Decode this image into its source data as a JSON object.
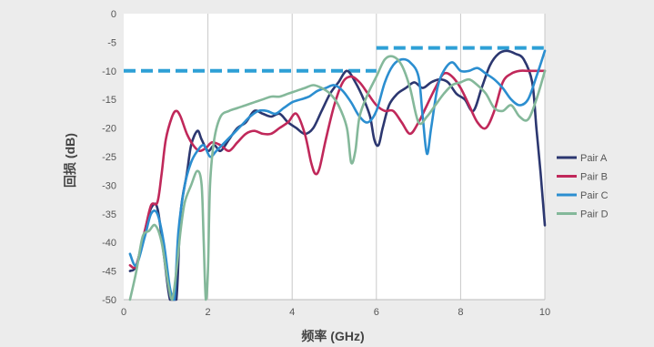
{
  "chart_data": {
    "type": "line",
    "title": "",
    "xlabel": "频率 (GHz)",
    "ylabel": "回损 (dB)",
    "xlim": [
      0,
      10
    ],
    "ylim": [
      -50,
      0
    ],
    "x_ticks": [
      0,
      2,
      4,
      6,
      8,
      10
    ],
    "y_ticks": [
      0,
      -5,
      -10,
      -15,
      -20,
      -25,
      -30,
      -35,
      -40,
      -45,
      -50
    ],
    "grid": "vertical",
    "legend_position": "right",
    "series": [
      {
        "name": "Pair A",
        "color": "#2c3770",
        "x": [
          0.15,
          0.3,
          0.5,
          0.65,
          0.8,
          0.95,
          1.1,
          1.25,
          1.35,
          1.5,
          1.6,
          1.75,
          1.85,
          2.0,
          2.15,
          2.3,
          2.5,
          2.7,
          2.9,
          3.1,
          3.3,
          3.5,
          3.7,
          3.9,
          4.1,
          4.3,
          4.5,
          4.7,
          4.9,
          5.1,
          5.3,
          5.5,
          5.7,
          5.85,
          5.95,
          6.05,
          6.15,
          6.3,
          6.5,
          6.7,
          6.9,
          7.1,
          7.3,
          7.5,
          7.7,
          7.9,
          8.1,
          8.3,
          8.5,
          8.7,
          8.9,
          9.1,
          9.3,
          9.5,
          9.7,
          9.8,
          9.9,
          10.0
        ],
        "values": [
          -45,
          -44,
          -38,
          -34,
          -34,
          -42,
          -50,
          -50,
          -35,
          -28,
          -23,
          -20.5,
          -22,
          -24,
          -23,
          -24,
          -22,
          -20,
          -19,
          -17,
          -17.5,
          -18,
          -17.5,
          -19,
          -20,
          -21,
          -20,
          -17,
          -14,
          -12,
          -10,
          -12,
          -15,
          -18,
          -22,
          -23,
          -20,
          -16,
          -14,
          -13,
          -12,
          -13,
          -12,
          -11.5,
          -12,
          -14,
          -15,
          -17,
          -13,
          -9,
          -7,
          -6.5,
          -7,
          -8,
          -12,
          -20,
          -28,
          -37
        ]
      },
      {
        "name": "Pair B",
        "color": "#c0285a",
        "x": [
          0.15,
          0.3,
          0.5,
          0.65,
          0.8,
          0.9,
          1.0,
          1.15,
          1.25,
          1.35,
          1.5,
          1.65,
          1.8,
          1.95,
          2.1,
          2.3,
          2.5,
          2.7,
          2.9,
          3.1,
          3.3,
          3.5,
          3.7,
          3.9,
          4.1,
          4.3,
          4.45,
          4.55,
          4.65,
          4.8,
          5.0,
          5.2,
          5.4,
          5.6,
          5.8,
          6.0,
          6.2,
          6.4,
          6.6,
          6.8,
          7.0,
          7.2,
          7.4,
          7.6,
          7.8,
          8.0,
          8.2,
          8.4,
          8.6,
          8.8,
          9.0,
          9.2,
          9.4,
          9.6,
          9.8,
          10.0
        ],
        "values": [
          -44,
          -44,
          -38,
          -33.5,
          -33,
          -28,
          -22,
          -18,
          -17,
          -18,
          -21,
          -23,
          -24,
          -23.5,
          -22.5,
          -23,
          -24,
          -22.5,
          -21,
          -20.5,
          -21,
          -21,
          -20,
          -19,
          -17.5,
          -21,
          -26,
          -28,
          -27,
          -22,
          -16,
          -12,
          -11,
          -12,
          -14,
          -16,
          -17,
          -17,
          -19,
          -21,
          -19,
          -16,
          -13,
          -10.5,
          -11,
          -13,
          -16,
          -19,
          -20,
          -17,
          -12,
          -10.5,
          -10,
          -10,
          -10,
          -10
        ]
      },
      {
        "name": "Pair C",
        "color": "#2b8ed0",
        "x": [
          0.15,
          0.3,
          0.5,
          0.65,
          0.8,
          0.95,
          1.1,
          1.2,
          1.3,
          1.45,
          1.6,
          1.75,
          1.9,
          2.05,
          2.2,
          2.4,
          2.6,
          2.8,
          3.0,
          3.2,
          3.4,
          3.6,
          3.8,
          4.0,
          4.2,
          4.4,
          4.6,
          4.8,
          5.0,
          5.2,
          5.4,
          5.6,
          5.8,
          6.0,
          6.2,
          6.4,
          6.6,
          6.8,
          7.0,
          7.1,
          7.2,
          7.3,
          7.45,
          7.6,
          7.8,
          8.0,
          8.2,
          8.4,
          8.6,
          8.8,
          9.0,
          9.2,
          9.4,
          9.6,
          9.8,
          10.0
        ],
        "values": [
          -42,
          -44,
          -39,
          -35,
          -35,
          -40,
          -48,
          -50,
          -38,
          -30,
          -26,
          -24,
          -23,
          -25,
          -24,
          -22.5,
          -21,
          -19.5,
          -18,
          -17,
          -17,
          -17.5,
          -16.5,
          -15.5,
          -15,
          -14.5,
          -13.5,
          -13,
          -12.5,
          -13.5,
          -15.5,
          -18,
          -19,
          -17,
          -12,
          -9,
          -8,
          -8.5,
          -11,
          -18,
          -24.5,
          -20,
          -13,
          -10,
          -8.5,
          -10,
          -10,
          -9.5,
          -10.5,
          -11.5,
          -13,
          -15,
          -16,
          -15,
          -11,
          -6.5
        ]
      },
      {
        "name": "Pair D",
        "color": "#84b89a",
        "x": [
          0.15,
          0.3,
          0.45,
          0.6,
          0.75,
          0.9,
          1.05,
          1.15,
          1.25,
          1.35,
          1.45,
          1.6,
          1.75,
          1.85,
          1.9,
          1.95,
          2.0,
          2.05,
          2.15,
          2.3,
          2.5,
          2.7,
          2.9,
          3.1,
          3.3,
          3.5,
          3.7,
          3.9,
          4.1,
          4.3,
          4.5,
          4.7,
          4.9,
          5.1,
          5.3,
          5.4,
          5.5,
          5.6,
          5.8,
          6.0,
          6.2,
          6.4,
          6.6,
          6.8,
          7.0,
          7.2,
          7.4,
          7.6,
          7.8,
          8.0,
          8.2,
          8.4,
          8.6,
          8.8,
          9.0,
          9.2,
          9.4,
          9.6,
          9.8,
          10.0
        ],
        "values": [
          -50,
          -45,
          -39,
          -38,
          -37,
          -40,
          -47,
          -50,
          -45,
          -38,
          -33,
          -30,
          -27.5,
          -30,
          -40,
          -50,
          -45,
          -30,
          -22,
          -18,
          -17,
          -16.5,
          -16,
          -15.5,
          -15,
          -14.5,
          -14.5,
          -14,
          -13.5,
          -13,
          -12.5,
          -13,
          -14,
          -16,
          -20,
          -26,
          -24,
          -18,
          -14,
          -11,
          -8,
          -7.5,
          -9,
          -13,
          -19,
          -18,
          -16,
          -14,
          -12.5,
          -12,
          -11.5,
          -12.5,
          -14,
          -16.5,
          -17,
          -16,
          -18,
          -18.5,
          -15,
          -10
        ]
      }
    ],
    "limit_lines": [
      {
        "x_start": 0,
        "x_end": 6,
        "y": -10,
        "color": "#2ea0d6",
        "style": "dashed"
      },
      {
        "x_start": 6,
        "x_end": 10,
        "y": -6,
        "color": "#2ea0d6",
        "style": "dashed"
      }
    ]
  }
}
